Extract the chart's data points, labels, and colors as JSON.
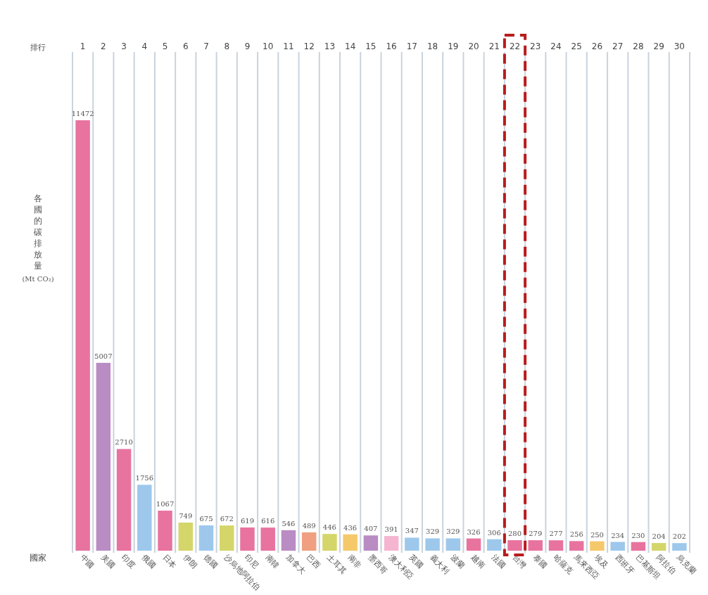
{
  "chart_data": {
    "type": "bar",
    "categories": [
      "中國",
      "美國",
      "印度",
      "俄國",
      "日本",
      "伊朗",
      "德國",
      "沙烏地阿拉伯",
      "印尼",
      "南韓",
      "加拿大",
      "巴西",
      "土耳其",
      "南非",
      "墨西哥",
      "澳大利亞",
      "英國",
      "義大利",
      "波蘭",
      "越南",
      "法國",
      "台灣",
      "泰國",
      "哈薩克",
      "馬來西亞",
      "埃及",
      "西班牙",
      "巴基斯坦",
      "阿拉伯",
      "烏克蘭"
    ],
    "values": [
      11472,
      5007,
      2710,
      1756,
      1067,
      749,
      675,
      672,
      619,
      616,
      546,
      489,
      446,
      436,
      407,
      391,
      347,
      329,
      329,
      326,
      306,
      280,
      279,
      277,
      256,
      250,
      234,
      230,
      204,
      202
    ],
    "colors": [
      "#e8739f",
      "#b98cc4",
      "#e8739f",
      "#9dc8ec",
      "#e8739f",
      "#d4d66a",
      "#9dc8ec",
      "#d4d66a",
      "#e8739f",
      "#e8739f",
      "#b98cc4",
      "#f0a080",
      "#d4d66a",
      "#f5c86a",
      "#b98cc4",
      "#f5b5d0",
      "#9dc8ec",
      "#9dc8ec",
      "#9dc8ec",
      "#e8739f",
      "#9dc8ec",
      "#e8739f",
      "#e8739f",
      "#e8739f",
      "#e8739f",
      "#f5c86a",
      "#9dc8ec",
      "#e8739f",
      "#d4d66a",
      "#9dc8ec"
    ],
    "data_labels": true,
    "xlabel": "國家",
    "ylabel": "各國的碳排放量(Mt CO₂)",
    "x2label": "排行",
    "x2lim": [
      0.5,
      30.5
    ],
    "x2ticks": [
      1,
      2,
      3,
      4,
      5,
      6,
      7,
      8,
      9,
      10,
      11,
      12,
      13,
      14,
      15,
      16,
      17,
      18,
      19,
      20,
      21,
      22,
      23,
      24,
      25,
      26,
      27,
      28,
      29,
      30
    ],
    "grid": "x"
  }
}
